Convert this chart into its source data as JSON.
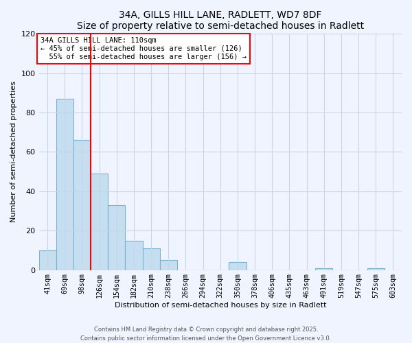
{
  "title": "34A, GILLS HILL LANE, RADLETT, WD7 8DF",
  "subtitle": "Size of property relative to semi-detached houses in Radlett",
  "xlabel": "Distribution of semi-detached houses by size in Radlett",
  "ylabel": "Number of semi-detached properties",
  "bar_labels": [
    "41sqm",
    "69sqm",
    "98sqm",
    "126sqm",
    "154sqm",
    "182sqm",
    "210sqm",
    "238sqm",
    "266sqm",
    "294sqm",
    "322sqm",
    "350sqm",
    "378sqm",
    "406sqm",
    "435sqm",
    "463sqm",
    "491sqm",
    "519sqm",
    "547sqm",
    "575sqm",
    "603sqm"
  ],
  "bar_values": [
    10,
    87,
    66,
    49,
    33,
    15,
    11,
    5,
    0,
    0,
    0,
    4,
    0,
    0,
    0,
    0,
    1,
    0,
    0,
    1,
    0
  ],
  "bar_color": "#c5dff0",
  "bar_edge_color": "#7ab0d4",
  "property_line_x": 2.5,
  "annotation_text": "34A GILLS HILL LANE: 110sqm\n← 45% of semi-detached houses are smaller (126)\n  55% of semi-detached houses are larger (156) →",
  "annotation_box_color": "white",
  "annotation_box_edge_color": "red",
  "vline_color": "red",
  "ylim": [
    0,
    120
  ],
  "yticks": [
    0,
    20,
    40,
    60,
    80,
    100,
    120
  ],
  "background_color": "#f0f4ff",
  "grid_color": "#c8d4e8",
  "footer_line1": "Contains HM Land Registry data © Crown copyright and database right 2025.",
  "footer_line2": "Contains public sector information licensed under the Open Government Licence v3.0."
}
